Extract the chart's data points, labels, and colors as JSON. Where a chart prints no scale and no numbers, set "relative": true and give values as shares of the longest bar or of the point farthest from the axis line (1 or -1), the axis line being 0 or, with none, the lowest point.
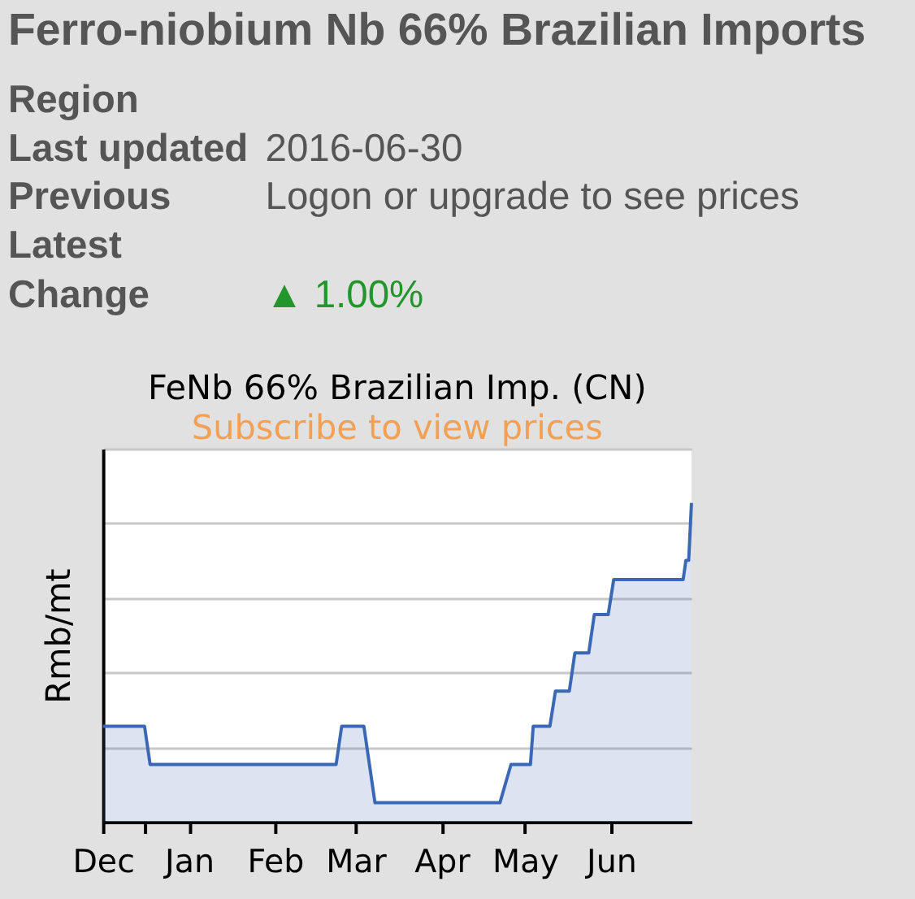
{
  "chart_data": [
    {
      "type": "other",
      "title": "Ferro-niobium Nb 66% Brazilian Imports",
      "annotations": [
        "Region",
        "Last updated",
        "2016-06-30",
        "Previous",
        "Logon or upgrade to see prices",
        "Latest",
        "Change",
        "▲ 1.00%"
      ]
    },
    {
      "type": "area",
      "title": "FeNb 66% Brazilian Imp. (CN)",
      "subtitle": "Subscribe to view prices",
      "ylabel": "Rmb/mt",
      "relative": true,
      "grid": "y",
      "x": [
        "2015-12-01",
        "2015-12-16",
        "2015-12-18",
        "2016-02-23",
        "2016-02-25",
        "2016-03-04",
        "2016-03-08",
        "2016-04-22",
        "2016-04-26",
        "2016-05-03",
        "2016-05-04",
        "2016-05-10",
        "2016-05-12",
        "2016-05-17",
        "2016-05-19",
        "2016-05-24",
        "2016-05-26",
        "2016-05-31",
        "2016-06-02",
        "2016-06-27",
        "2016-06-28",
        "2016-06-29",
        "2016-06-30"
      ],
      "series": [
        {
          "color": "#3b68b4",
          "values": [
            0.3,
            0.3,
            0.18,
            0.18,
            0.3,
            0.3,
            0.06,
            0.06,
            0.18,
            0.18,
            0.3,
            0.3,
            0.41,
            0.41,
            0.53,
            0.53,
            0.65,
            0.65,
            0.76,
            0.76,
            0.82,
            0.82,
            1.0
          ]
        }
      ],
      "xlim": [
        "2015-12-01",
        "2016-06-30"
      ],
      "xticks": [
        {
          "value": "2015-12-01",
          "label": "Dec"
        },
        {
          "value": "2015-12-16",
          "label": null
        },
        {
          "value": "2016-01-01",
          "label": "Jan"
        },
        {
          "value": "2016-02-01",
          "label": "Feb"
        },
        {
          "value": "2016-03-01",
          "label": "Mar"
        },
        {
          "value": "2016-04-01",
          "label": "Apr"
        },
        {
          "value": "2016-05-01",
          "label": "May"
        },
        {
          "value": "2016-06-01",
          "label": "Jun"
        }
      ]
    }
  ]
}
